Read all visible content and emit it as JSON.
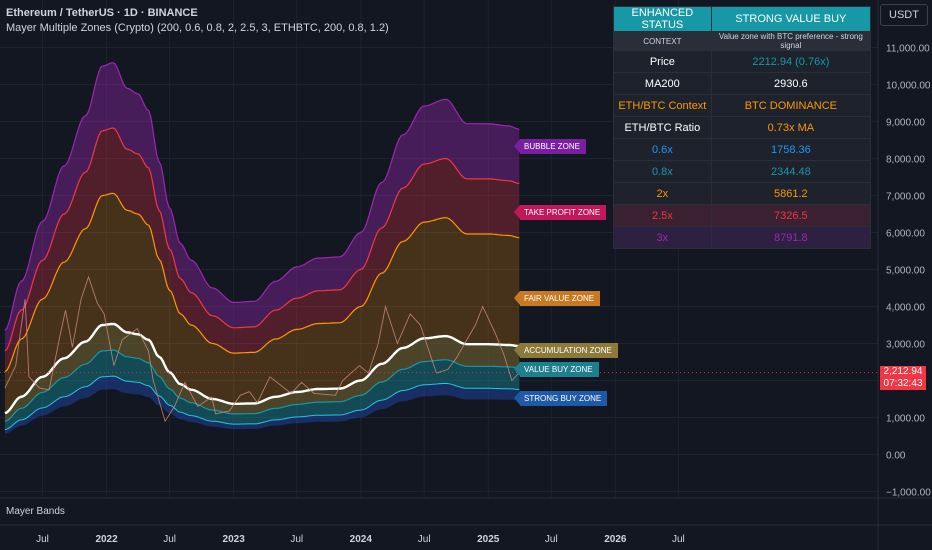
{
  "header": {
    "symbol": "Ethereum / TetherUS · 1D · BINANCE",
    "indicator": "Mayer Multiple Zones (Crypto) (200, 0.6, 0.8, 2, 2.5, 3, ETHBTC, 200, 0.8, 1.2)"
  },
  "currency_button": "USDT",
  "price_tag": {
    "price": "2,212.94",
    "countdown": "07:32:43",
    "color": "#f23645"
  },
  "pane_label": "Mayer Bands",
  "colors": {
    "background": "#131722",
    "bubble": "#9c27b0",
    "take_profit": "#f23645",
    "fair_value": "#ff9800",
    "ma200": "#ffffff",
    "accumulation": "#7a6a30",
    "value_buy": "#1698a6",
    "strong_buy": "#2962ff"
  },
  "zone_labels": [
    {
      "name": "bubble",
      "label": "BUBBLE ZONE",
      "color": "#7b1fa2"
    },
    {
      "name": "take-profit",
      "label": "TAKE PROFIT ZONE",
      "color": "#c2185b"
    },
    {
      "name": "fair-value",
      "label": "FAIR VALUE ZONE",
      "color": "#c77a22"
    },
    {
      "name": "accumulation",
      "label": "ACCUMULATION ZONE",
      "color": "#8d7a3a"
    },
    {
      "name": "value-buy",
      "label": "VALUE BUY ZONE",
      "color": "#1e7f8e"
    },
    {
      "name": "strong-buy",
      "label": "STRONG BUY ZONE",
      "color": "#1e5aa8"
    }
  ],
  "status_table": {
    "header": {
      "left": "ENHANCED STATUS",
      "right": "STRONG VALUE BUY"
    },
    "context": {
      "left": "CONTEXT",
      "right": "Value zone with BTC preference - strong signal"
    },
    "rows": [
      {
        "label": "Price",
        "value": "2212.94 (0.76x)",
        "label_color": "#ffffff",
        "value_color": "#1698a6",
        "bg": "#1e222d"
      },
      {
        "label": "MA200",
        "value": "2930.6",
        "label_color": "#ffffff",
        "value_color": "#ffffff",
        "bg": "#1e222d"
      },
      {
        "label": "ETH/BTC Context",
        "value": "BTC DOMINANCE",
        "label_color": "#ff9800",
        "value_color": "#ff9800",
        "bg": "#1e222d"
      },
      {
        "label": "ETH/BTC Ratio",
        "value": "0.73x MA",
        "label_color": "#ffffff",
        "value_color": "#ff9800",
        "bg": "#1e222d"
      },
      {
        "label": "0.6x",
        "value": "1758.36",
        "label_color": "#2196f3",
        "value_color": "#2196f3",
        "bg": "#1e222d"
      },
      {
        "label": "0.8x",
        "value": "2344.48",
        "label_color": "#1698a6",
        "value_color": "#1698a6",
        "bg": "#1e222d"
      },
      {
        "label": "2x",
        "value": "5861.2",
        "label_color": "#ff9800",
        "value_color": "#ff9800",
        "bg": "#1e222d"
      },
      {
        "label": "2.5x",
        "value": "7326.5",
        "label_color": "#f23645",
        "value_color": "#f23645",
        "bg": "#3a2030"
      },
      {
        "label": "3x",
        "value": "8791.8",
        "label_color": "#9c27b0",
        "value_color": "#9c27b0",
        "bg": "#2d2040"
      }
    ]
  },
  "chart_data": {
    "type": "area",
    "y_axis": {
      "ticks": [
        -1000,
        0,
        1000,
        2000,
        3000,
        4000,
        5000,
        6000,
        7000,
        8000,
        9000,
        10000,
        11000
      ],
      "tick_labels": [
        "−1,000.00",
        "0.00",
        "1,000.00",
        "2,000.00",
        "3,000.00",
        "4,000.00",
        "5,000.00",
        "6,000.00",
        "7,000.00",
        "8,000.00",
        "9,000.00",
        "10,000.00",
        "11,000.00"
      ],
      "range": [
        -1200,
        11500
      ]
    },
    "x_axis": {
      "range": [
        "2021-03-15",
        "2026-10-01"
      ],
      "ticks": [
        {
          "t": "2021-07-01",
          "label": "Jul",
          "bold": false
        },
        {
          "t": "2022-01-01",
          "label": "2022",
          "bold": true
        },
        {
          "t": "2022-07-01",
          "label": "Jul",
          "bold": false
        },
        {
          "t": "2023-01-01",
          "label": "2023",
          "bold": true
        },
        {
          "t": "2023-07-01",
          "label": "Jul",
          "bold": false
        },
        {
          "t": "2024-01-01",
          "label": "2024",
          "bold": true
        },
        {
          "t": "2024-07-01",
          "label": "Jul",
          "bold": false
        },
        {
          "t": "2025-01-01",
          "label": "2025",
          "bold": true
        },
        {
          "t": "2025-07-01",
          "label": "Jul",
          "bold": false
        },
        {
          "t": "2026-01-01",
          "label": "2026",
          "bold": true
        },
        {
          "t": "2026-07-01",
          "label": "Jul",
          "bold": false
        }
      ]
    },
    "current_price": 2212.94,
    "multipliers": {
      "strong_buy": 0.6,
      "value_buy": 0.8,
      "fair_value": 2,
      "take_profit": 2.5,
      "bubble": 3
    },
    "series": [
      {
        "name": "MA200",
        "points": [
          [
            "2021-03-15",
            1120
          ],
          [
            "2021-05-01",
            1560
          ],
          [
            "2021-07-01",
            2100
          ],
          [
            "2021-09-01",
            2600
          ],
          [
            "2021-11-01",
            3050
          ],
          [
            "2021-12-20",
            3500
          ],
          [
            "2022-01-20",
            3530
          ],
          [
            "2022-03-01",
            3300
          ],
          [
            "2022-04-01",
            3250
          ],
          [
            "2022-05-01",
            3100
          ],
          [
            "2022-06-01",
            2640
          ],
          [
            "2022-07-01",
            2220
          ],
          [
            "2022-08-01",
            1900
          ],
          [
            "2022-09-01",
            1750
          ],
          [
            "2022-11-01",
            1500
          ],
          [
            "2023-01-01",
            1370
          ],
          [
            "2023-03-01",
            1380
          ],
          [
            "2023-05-01",
            1560
          ],
          [
            "2023-07-01",
            1690
          ],
          [
            "2023-09-01",
            1770
          ],
          [
            "2023-11-01",
            1780
          ],
          [
            "2024-01-01",
            2000
          ],
          [
            "2024-03-01",
            2450
          ],
          [
            "2024-05-01",
            2880
          ],
          [
            "2024-07-01",
            3140
          ],
          [
            "2024-09-01",
            3200
          ],
          [
            "2024-11-01",
            2980
          ],
          [
            "2025-01-01",
            2980
          ],
          [
            "2025-03-01",
            2960
          ],
          [
            "2025-03-31",
            2930.6
          ]
        ]
      },
      {
        "name": "Price",
        "points": [
          [
            "2021-03-15",
            1800
          ],
          [
            "2021-04-15",
            2400
          ],
          [
            "2021-05-12",
            4200
          ],
          [
            "2021-05-23",
            2100
          ],
          [
            "2021-06-22",
            1800
          ],
          [
            "2021-07-20",
            1750
          ],
          [
            "2021-08-20",
            3200
          ],
          [
            "2021-09-05",
            3900
          ],
          [
            "2021-09-25",
            2900
          ],
          [
            "2021-10-20",
            4200
          ],
          [
            "2021-11-10",
            4800
          ],
          [
            "2021-12-05",
            4100
          ],
          [
            "2021-12-25",
            3800
          ],
          [
            "2022-01-22",
            2400
          ],
          [
            "2022-02-15",
            3100
          ],
          [
            "2022-03-30",
            3400
          ],
          [
            "2022-05-01",
            2800
          ],
          [
            "2022-05-15",
            2000
          ],
          [
            "2022-06-18",
            900
          ],
          [
            "2022-07-15",
            1300
          ],
          [
            "2022-08-14",
            1950
          ],
          [
            "2022-09-20",
            1300
          ],
          [
            "2022-10-30",
            1550
          ],
          [
            "2022-11-10",
            1100
          ],
          [
            "2022-12-20",
            1180
          ],
          [
            "2023-01-20",
            1600
          ],
          [
            "2023-02-15",
            1700
          ],
          [
            "2023-03-10",
            1400
          ],
          [
            "2023-04-15",
            2100
          ],
          [
            "2023-06-15",
            1650
          ],
          [
            "2023-07-15",
            1950
          ],
          [
            "2023-08-20",
            1650
          ],
          [
            "2023-10-20",
            1600
          ],
          [
            "2023-11-10",
            2000
          ],
          [
            "2023-12-28",
            2400
          ],
          [
            "2024-01-23",
            2200
          ],
          [
            "2024-02-20",
            3000
          ],
          [
            "2024-03-12",
            4000
          ],
          [
            "2024-04-15",
            3000
          ],
          [
            "2024-05-22",
            3800
          ],
          [
            "2024-06-20",
            3500
          ],
          [
            "2024-08-05",
            2200
          ],
          [
            "2024-09-07",
            2300
          ],
          [
            "2024-10-01",
            2600
          ],
          [
            "2024-11-25",
            3500
          ],
          [
            "2024-12-16",
            4000
          ],
          [
            "2025-01-20",
            3300
          ],
          [
            "2025-02-15",
            2700
          ],
          [
            "2025-03-10",
            2000
          ],
          [
            "2025-03-31",
            2212.94
          ]
        ]
      }
    ]
  }
}
